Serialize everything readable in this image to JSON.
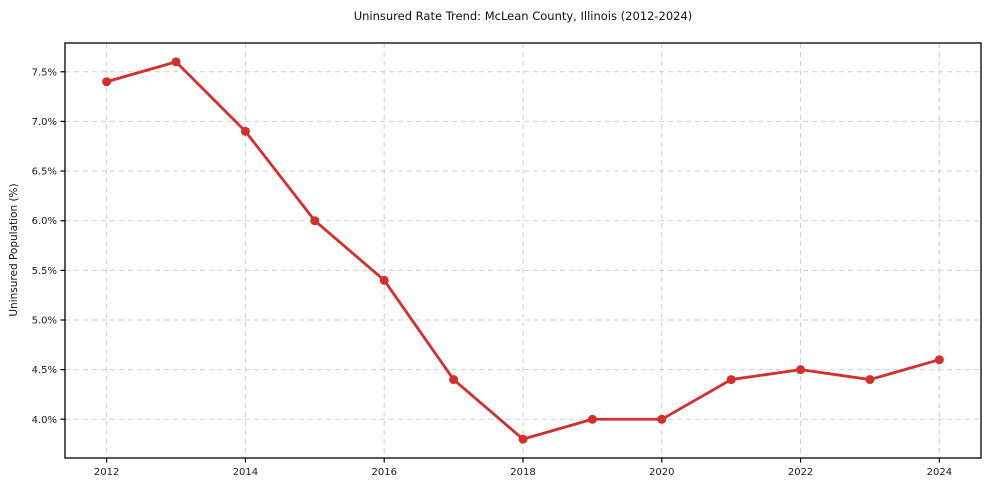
{
  "chart_data": {
    "type": "line",
    "title": "Uninsured Rate Trend: McLean County, Illinois (2012-2024)",
    "xlabel": "",
    "ylabel": "Uninsured Population (%)",
    "x": [
      2012,
      2013,
      2014,
      2015,
      2016,
      2017,
      2018,
      2019,
      2020,
      2021,
      2022,
      2023,
      2024
    ],
    "values": [
      7.4,
      7.6,
      6.9,
      6.0,
      5.4,
      4.4,
      3.8,
      4.0,
      4.0,
      4.4,
      4.5,
      4.4,
      4.6
    ],
    "xlim": [
      2011.4,
      2024.6
    ],
    "ylim": [
      3.61,
      7.79
    ],
    "xticks": [
      2012,
      2014,
      2016,
      2018,
      2020,
      2022,
      2024
    ],
    "xtick_labels": [
      "2012",
      "2014",
      "2016",
      "2018",
      "2020",
      "2022",
      "2024"
    ],
    "yticks": [
      4.0,
      4.5,
      5.0,
      5.5,
      6.0,
      6.5,
      7.0,
      7.5
    ],
    "ytick_labels": [
      "4.0%",
      "4.5%",
      "5.0%",
      "5.5%",
      "6.0%",
      "6.5%",
      "7.0%",
      "7.5%"
    ],
    "grid": true,
    "grid_style": "dashed",
    "legend": "none",
    "line_color": "#d32f2f",
    "marker": "circle",
    "grid_color": "#cfcfcf",
    "frame_color": "#000000",
    "tick_label_color": "#1a1a1a"
  }
}
